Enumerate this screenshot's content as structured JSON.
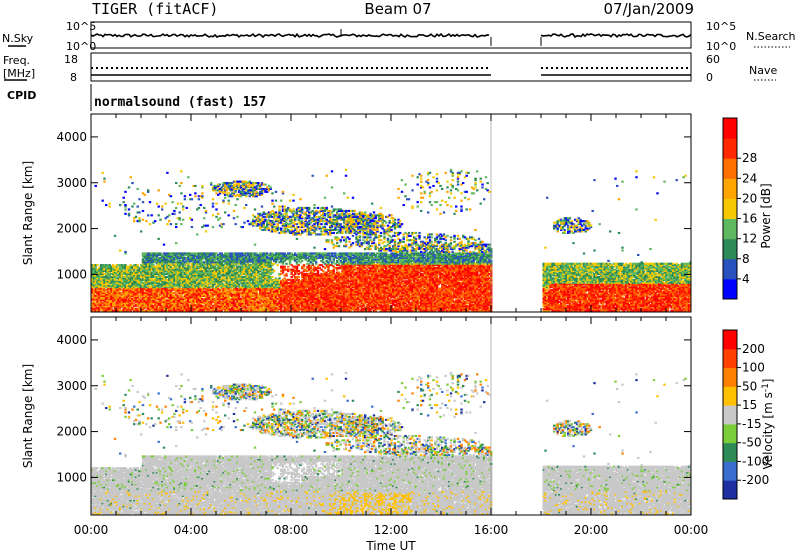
{
  "header": {
    "site": "TIGER (fitACF)",
    "beam": "Beam 07",
    "date": "07/Jan/2009"
  },
  "status_panels": {
    "nsky": {
      "label": "N.Sky",
      "ticks": [
        "10^5",
        "10^0"
      ]
    },
    "nsearch": {
      "label": "N.Search",
      "ticks": [
        "10^5",
        "10^0"
      ]
    },
    "freq": {
      "label_line1": "Freq.",
      "label_line2": "[MHz]",
      "ticks": [
        "18",
        "8"
      ]
    },
    "nave": {
      "label": "Nave",
      "ticks": [
        "60",
        "0"
      ]
    },
    "cpid": {
      "label": "CPID",
      "value": "normalsound (fast) 157"
    }
  },
  "x_axis": {
    "label": "Time UT",
    "ticks": [
      "00:00",
      "04:00",
      "08:00",
      "12:00",
      "16:00",
      "20:00",
      "00:00"
    ]
  },
  "chart_data": [
    {
      "type": "heatmap",
      "title": "",
      "xlabel": "Time UT",
      "ylabel": "Slant Range [km]",
      "xlim": [
        0,
        24
      ],
      "ylim": [
        180,
        4500
      ],
      "y_ticks": [
        "1000",
        "2000",
        "3000",
        "4000"
      ],
      "data_gap": [
        16,
        18
      ],
      "colorbar": {
        "label": "Power [dB]",
        "ticks": [
          "4",
          "8",
          "12",
          "16",
          "20",
          "24",
          "28"
        ],
        "colors": [
          "#0000ff",
          "#2a52be",
          "#2e8b57",
          "#5fb85f",
          "#f5c800",
          "#ffa500",
          "#ff7000",
          "#ff2800",
          "#ff0000"
        ]
      }
    },
    {
      "type": "heatmap",
      "title": "",
      "xlabel": "Time UT",
      "ylabel": "Slant Range [km]",
      "xlim": [
        0,
        24
      ],
      "ylim": [
        180,
        4500
      ],
      "y_ticks": [
        "1000",
        "2000",
        "3000",
        "4000"
      ],
      "data_gap": [
        16,
        18
      ],
      "colorbar": {
        "label": "Velocity [m s",
        "label_superscript": "-1",
        "ticks": [
          "200",
          "100",
          "50",
          "15",
          "-15",
          "-50",
          "-100",
          "-200"
        ],
        "colors": [
          "#1e2fa0",
          "#3a6fcf",
          "#2e8b57",
          "#7ccd3a",
          "#c8c8c8",
          "#ffc000",
          "#ff8000",
          "#ff4000",
          "#ff0000"
        ]
      }
    }
  ]
}
